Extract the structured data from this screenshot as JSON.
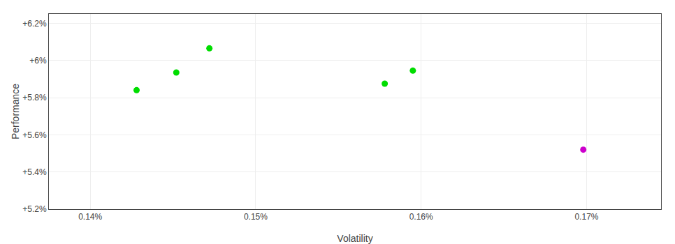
{
  "chart_data": {
    "type": "scatter",
    "xlabel": "Volatility",
    "ylabel": "Performance",
    "series": [
      {
        "color": "#00dd00",
        "x": [
          0.1428,
          0.1452,
          0.1472,
          0.1578,
          0.1595
        ],
        "values": [
          5.84,
          5.935,
          6.065,
          5.875,
          5.945
        ]
      },
      {
        "color": "#cc00cc",
        "x": [
          0.1698
        ],
        "values": [
          5.52
        ]
      }
    ],
    "xlim": [
      0.1375,
      0.1745
    ],
    "ylim": [
      5.2,
      6.25
    ],
    "xticks": [
      {
        "value": 0.14,
        "label": "0.14%"
      },
      {
        "value": 0.15,
        "label": "0.15%"
      },
      {
        "value": 0.16,
        "label": "0.16%"
      },
      {
        "value": 0.17,
        "label": "0.17%"
      }
    ],
    "yticks": [
      {
        "value": 5.2,
        "label": "+5.2%"
      },
      {
        "value": 5.4,
        "label": "+5.4%"
      },
      {
        "value": 5.6,
        "label": "+5.6%"
      },
      {
        "value": 5.8,
        "label": "+5.8%"
      },
      {
        "value": 6.0,
        "label": "+6%"
      },
      {
        "value": 6.2,
        "label": "+6.2%"
      }
    ],
    "grid": true,
    "marker": "circle"
  }
}
